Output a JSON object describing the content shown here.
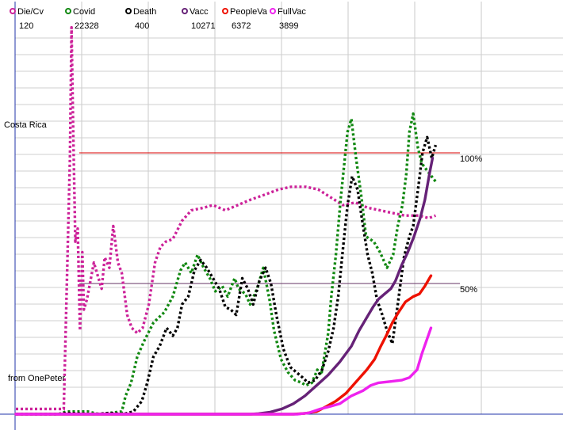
{
  "chart_data": {
    "type": "line",
    "country_label": "Costa Rica",
    "credit": "from OnePeter",
    "reference_lines": [
      {
        "label": "100%",
        "value": 100,
        "color": "#dd0000"
      },
      {
        "label": "50%",
        "value": 50,
        "color": "#663366"
      }
    ],
    "legend_placement": "top-left",
    "grid": true,
    "series": [
      {
        "name": "Die/Cv",
        "value": "120",
        "color": "#cc2299",
        "style": "dotted",
        "points": [
          [
            0.1,
            2
          ],
          [
            6.3,
            2
          ],
          [
            7.1,
            98
          ],
          [
            7.3,
            148
          ],
          [
            7.5,
            112
          ],
          [
            7.8,
            66
          ],
          [
            8.1,
            71
          ],
          [
            8.4,
            32
          ],
          [
            8.7,
            62
          ],
          [
            8.9,
            40
          ],
          [
            9.3,
            44
          ],
          [
            10.2,
            58
          ],
          [
            10.6,
            54
          ],
          [
            11.2,
            48
          ],
          [
            11.6,
            60
          ],
          [
            12.2,
            56
          ],
          [
            12.7,
            72
          ],
          [
            13.3,
            58
          ],
          [
            13.8,
            54
          ],
          [
            14.5,
            38
          ],
          [
            15.1,
            33
          ],
          [
            15.8,
            31
          ],
          [
            16.5,
            33
          ],
          [
            17.3,
            42
          ],
          [
            18.1,
            58
          ],
          [
            18.8,
            64
          ],
          [
            19.5,
            66
          ],
          [
            20.4,
            67
          ],
          [
            21.6,
            74
          ],
          [
            22.8,
            78
          ],
          [
            24.4,
            79
          ],
          [
            25.6,
            80
          ],
          [
            27.2,
            78
          ],
          [
            28.8,
            80
          ],
          [
            30.4,
            82
          ],
          [
            32.3,
            84
          ],
          [
            34.1,
            86
          ],
          [
            35.7,
            87
          ],
          [
            37.6,
            87
          ],
          [
            39.2,
            86
          ],
          [
            40.8,
            83
          ],
          [
            42.4,
            80
          ],
          [
            44.0,
            81
          ],
          [
            45.6,
            79
          ],
          [
            47.2,
            78
          ],
          [
            48.8,
            77
          ],
          [
            50.4,
            76
          ],
          [
            52.3,
            76
          ],
          [
            53.5,
            75
          ],
          [
            54.4,
            76
          ]
        ]
      },
      {
        "name": "Covid",
        "value": "22328",
        "color": "#118811",
        "style": "dotted",
        "points": [
          [
            0.1,
            0
          ],
          [
            5.6,
            0
          ],
          [
            6.6,
            1
          ],
          [
            9.4,
            1
          ],
          [
            10.9,
            0
          ],
          [
            12.3,
            0.5
          ],
          [
            13.8,
            1
          ],
          [
            14.3,
            7
          ],
          [
            15.0,
            12
          ],
          [
            15.8,
            22
          ],
          [
            16.7,
            28
          ],
          [
            17.9,
            35
          ],
          [
            19.3,
            39
          ],
          [
            20.4,
            45
          ],
          [
            21.4,
            55
          ],
          [
            22.0,
            58
          ],
          [
            22.8,
            54
          ],
          [
            23.6,
            61
          ],
          [
            24.4,
            56
          ],
          [
            25.2,
            52
          ],
          [
            25.9,
            47
          ],
          [
            26.8,
            49
          ],
          [
            27.5,
            45
          ],
          [
            28.4,
            52
          ],
          [
            28.9,
            48
          ],
          [
            29.8,
            46
          ],
          [
            30.4,
            42
          ],
          [
            31.3,
            48
          ],
          [
            32.1,
            56
          ],
          [
            32.9,
            44
          ],
          [
            33.5,
            32
          ],
          [
            34.4,
            21
          ],
          [
            35.3,
            16
          ],
          [
            36.2,
            13
          ],
          [
            37.1,
            12
          ],
          [
            37.6,
            11
          ],
          [
            38.4,
            12
          ],
          [
            39.1,
            17
          ],
          [
            39.6,
            15
          ],
          [
            40.5,
            31
          ],
          [
            40.9,
            45
          ],
          [
            41.5,
            61
          ],
          [
            42.1,
            82
          ],
          [
            43.0,
            108
          ],
          [
            43.5,
            113
          ],
          [
            44.1,
            98
          ],
          [
            44.8,
            83
          ],
          [
            45.4,
            68
          ],
          [
            46.4,
            66
          ],
          [
            47.2,
            62
          ],
          [
            48.1,
            56
          ],
          [
            48.9,
            61
          ],
          [
            49.5,
            72
          ],
          [
            50.1,
            80
          ],
          [
            50.6,
            92
          ],
          [
            51.0,
            108
          ],
          [
            51.5,
            115
          ],
          [
            52.1,
            102
          ],
          [
            52.6,
            96
          ],
          [
            53.1,
            94
          ],
          [
            54.4,
            89
          ]
        ]
      },
      {
        "name": "Death",
        "value": "400",
        "color": "#000000",
        "style": "dotted",
        "points": [
          [
            0.1,
            0
          ],
          [
            5.6,
            0
          ],
          [
            6.6,
            0.5
          ],
          [
            10.4,
            0
          ],
          [
            12.3,
            0.5
          ],
          [
            14.0,
            0
          ],
          [
            15.3,
            1
          ],
          [
            16.4,
            5
          ],
          [
            17.1,
            12
          ],
          [
            17.9,
            22
          ],
          [
            18.7,
            26
          ],
          [
            19.6,
            33
          ],
          [
            20.4,
            30
          ],
          [
            21.0,
            33
          ],
          [
            21.6,
            42
          ],
          [
            22.4,
            45
          ],
          [
            23.2,
            55
          ],
          [
            24.0,
            59
          ],
          [
            24.8,
            56
          ],
          [
            25.6,
            52
          ],
          [
            26.4,
            48
          ],
          [
            27.2,
            41
          ],
          [
            27.9,
            40
          ],
          [
            28.6,
            38
          ],
          [
            29.4,
            52
          ],
          [
            30.1,
            48
          ],
          [
            30.8,
            42
          ],
          [
            31.6,
            51
          ],
          [
            32.4,
            56
          ],
          [
            33.1,
            50
          ],
          [
            33.8,
            38
          ],
          [
            34.7,
            25
          ],
          [
            35.6,
            18
          ],
          [
            36.4,
            16
          ],
          [
            37.2,
            14
          ],
          [
            37.9,
            12
          ],
          [
            38.8,
            13
          ],
          [
            39.7,
            17
          ],
          [
            40.5,
            24
          ],
          [
            41.2,
            33
          ],
          [
            41.8,
            45
          ],
          [
            42.4,
            63
          ],
          [
            43.0,
            80
          ],
          [
            43.6,
            91
          ],
          [
            44.3,
            86
          ],
          [
            44.9,
            74
          ],
          [
            45.6,
            61
          ],
          [
            46.2,
            54
          ],
          [
            46.8,
            44
          ],
          [
            47.5,
            38
          ],
          [
            48.1,
            32
          ],
          [
            48.8,
            27
          ],
          [
            49.5,
            42
          ],
          [
            50.3,
            60
          ],
          [
            51.0,
            68
          ],
          [
            51.5,
            72
          ],
          [
            52.2,
            88
          ],
          [
            52.7,
            100
          ],
          [
            53.3,
            106
          ],
          [
            53.9,
            98
          ],
          [
            54.4,
            103
          ]
        ]
      },
      {
        "name": "Vacc",
        "value": "10271",
        "color": "#662277",
        "style": "solid",
        "points": [
          [
            0.1,
            0
          ],
          [
            30.5,
            0
          ],
          [
            31.5,
            0.2
          ],
          [
            33.0,
            0.8
          ],
          [
            34.5,
            2
          ],
          [
            36.0,
            4
          ],
          [
            37.5,
            7
          ],
          [
            39.0,
            11
          ],
          [
            40.5,
            15
          ],
          [
            42.0,
            20
          ],
          [
            43.5,
            26
          ],
          [
            44.5,
            32
          ],
          [
            45.5,
            37
          ],
          [
            46.3,
            41
          ],
          [
            47.0,
            44
          ],
          [
            47.8,
            46
          ],
          [
            48.6,
            48
          ],
          [
            49.2,
            51
          ],
          [
            50.0,
            57
          ],
          [
            50.8,
            62
          ],
          [
            51.6,
            68
          ],
          [
            52.4,
            75
          ],
          [
            53.0,
            82
          ],
          [
            53.6,
            92
          ],
          [
            54.0,
            98
          ]
        ]
      },
      {
        "name": "PeopleVa",
        "value": "6372",
        "color": "#ee1100",
        "style": "solid",
        "points": [
          [
            0.1,
            0
          ],
          [
            36.0,
            0
          ],
          [
            37.5,
            0.3
          ],
          [
            39.0,
            1
          ],
          [
            40.3,
            3
          ],
          [
            41.5,
            5
          ],
          [
            42.8,
            8
          ],
          [
            44.0,
            12
          ],
          [
            45.5,
            17
          ],
          [
            46.5,
            21
          ],
          [
            47.3,
            26
          ],
          [
            48.0,
            30
          ],
          [
            48.8,
            35
          ],
          [
            49.6,
            39
          ],
          [
            50.5,
            43
          ],
          [
            51.5,
            45
          ],
          [
            52.3,
            46
          ],
          [
            53.0,
            49
          ],
          [
            53.8,
            53
          ]
        ]
      },
      {
        "name": "FullVac",
        "value": "3899",
        "color": "#ee22ee",
        "style": "solid",
        "points": [
          [
            0.1,
            0
          ],
          [
            36.5,
            0
          ],
          [
            38.0,
            0.5
          ],
          [
            39.5,
            2
          ],
          [
            40.8,
            3
          ],
          [
            42.0,
            4
          ],
          [
            43.5,
            7
          ],
          [
            45.0,
            9
          ],
          [
            46.0,
            11
          ],
          [
            47.0,
            12
          ],
          [
            48.5,
            12.5
          ],
          [
            50.0,
            13
          ],
          [
            51.0,
            14
          ],
          [
            52.0,
            17
          ],
          [
            52.6,
            23
          ],
          [
            53.2,
            28
          ],
          [
            53.8,
            33
          ]
        ]
      }
    ]
  }
}
